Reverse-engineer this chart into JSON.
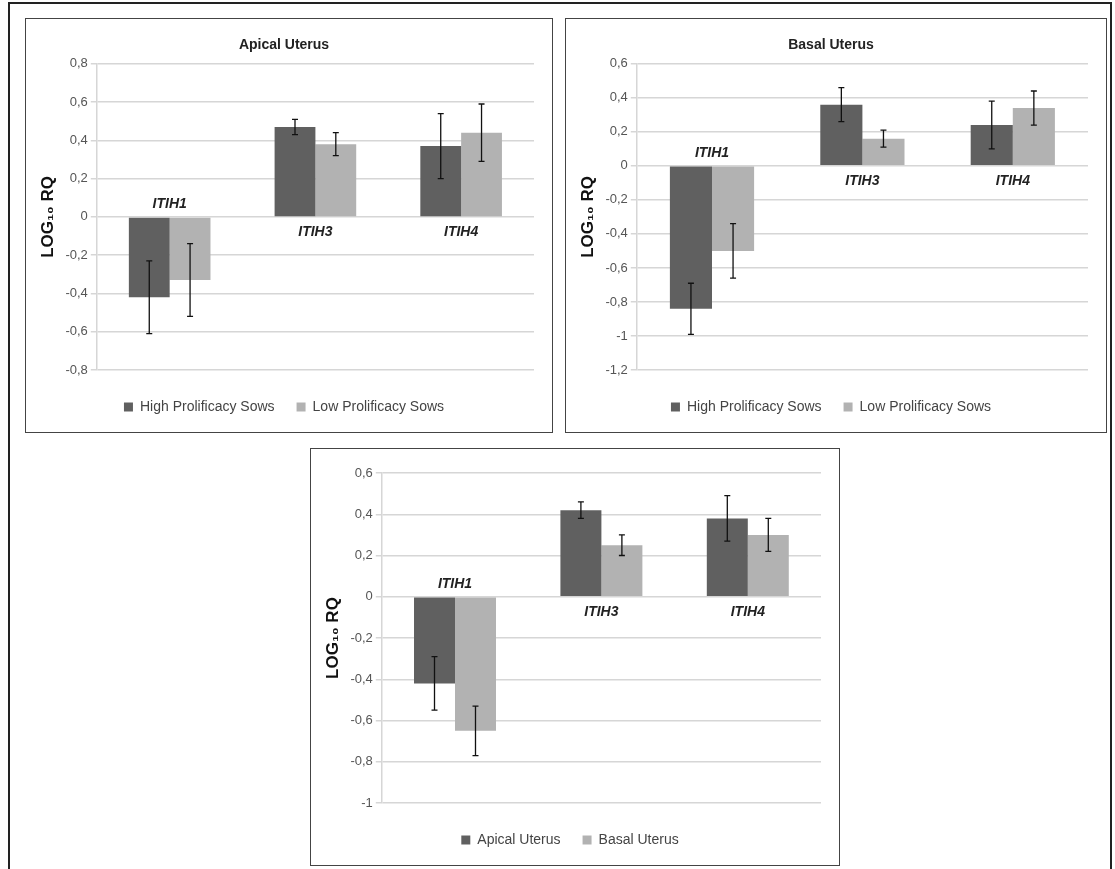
{
  "chart_data": [
    {
      "type": "bar",
      "title": "Apical Uterus",
      "ylabel": "LOG₁₀ RQ",
      "categories": [
        "ITIH1",
        "ITIH3",
        "ITIH4"
      ],
      "series": [
        {
          "name": "High Prolificacy Sows",
          "color": "#606060",
          "values": [
            -0.42,
            0.47,
            0.37
          ],
          "errors": [
            0.19,
            0.04,
            0.17
          ]
        },
        {
          "name": "Low Prolificacy Sows",
          "color": "#b2b2b2",
          "values": [
            -0.33,
            0.38,
            0.44
          ],
          "errors": [
            0.19,
            0.06,
            0.15
          ]
        }
      ],
      "ylim": [
        -0.8,
        0.8
      ],
      "yticks": [
        {
          "value": -0.8,
          "label": "-0,8"
        },
        {
          "value": -0.6,
          "label": "-0,6"
        },
        {
          "value": -0.4,
          "label": "-0,4"
        },
        {
          "value": -0.2,
          "label": "-0,2"
        },
        {
          "value": 0,
          "label": "0"
        },
        {
          "value": 0.2,
          "label": "0,2"
        },
        {
          "value": 0.4,
          "label": "0,4"
        },
        {
          "value": 0.6,
          "label": "0,6"
        },
        {
          "value": 0.8,
          "label": "0,8"
        }
      ],
      "grid": "y",
      "legend": "bottom"
    },
    {
      "type": "bar",
      "title": "Basal Uterus",
      "ylabel": "LOG₁₀ RQ",
      "categories": [
        "ITIH1",
        "ITIH3",
        "ITIH4"
      ],
      "series": [
        {
          "name": "High Prolificacy Sows",
          "color": "#606060",
          "values": [
            -0.84,
            0.36,
            0.24
          ],
          "errors": [
            0.15,
            0.1,
            0.14
          ]
        },
        {
          "name": "Low Prolificacy Sows",
          "color": "#b2b2b2",
          "values": [
            -0.5,
            0.16,
            0.34
          ],
          "errors": [
            0.16,
            0.05,
            0.1
          ]
        }
      ],
      "ylim": [
        -1.2,
        0.6
      ],
      "yticks": [
        {
          "value": -1.2,
          "label": "-1,2"
        },
        {
          "value": -1,
          "label": "-1"
        },
        {
          "value": -0.8,
          "label": "-0,8"
        },
        {
          "value": -0.6,
          "label": "-0,6"
        },
        {
          "value": -0.4,
          "label": "-0,4"
        },
        {
          "value": -0.2,
          "label": "-0,2"
        },
        {
          "value": 0,
          "label": "0"
        },
        {
          "value": 0.2,
          "label": "0,2"
        },
        {
          "value": 0.4,
          "label": "0,4"
        },
        {
          "value": 0.6,
          "label": "0,6"
        }
      ],
      "grid": "y",
      "legend": "bottom"
    },
    {
      "type": "bar",
      "ylabel": "LOG₁₀ RQ",
      "categories": [
        "ITIH1",
        "ITIH3",
        "ITIH4"
      ],
      "series": [
        {
          "name": "Apical Uterus",
          "color": "#606060",
          "values": [
            -0.42,
            0.42,
            0.38
          ],
          "errors": [
            0.13,
            0.04,
            0.11
          ]
        },
        {
          "name": "Basal Uterus",
          "color": "#b2b2b2",
          "values": [
            -0.65,
            0.25,
            0.3
          ],
          "errors": [
            0.12,
            0.05,
            0.08
          ]
        }
      ],
      "ylim": [
        -1,
        0.6
      ],
      "yticks": [
        {
          "value": -1,
          "label": "-1"
        },
        {
          "value": -0.8,
          "label": "-0,8"
        },
        {
          "value": -0.6,
          "label": "-0,6"
        },
        {
          "value": -0.4,
          "label": "-0,4"
        },
        {
          "value": -0.2,
          "label": "-0,2"
        },
        {
          "value": 0,
          "label": "0"
        },
        {
          "value": 0.2,
          "label": "0,2"
        },
        {
          "value": 0.4,
          "label": "0,4"
        },
        {
          "value": 0.6,
          "label": "0,6"
        }
      ],
      "grid": "y",
      "legend": "bottom"
    }
  ]
}
